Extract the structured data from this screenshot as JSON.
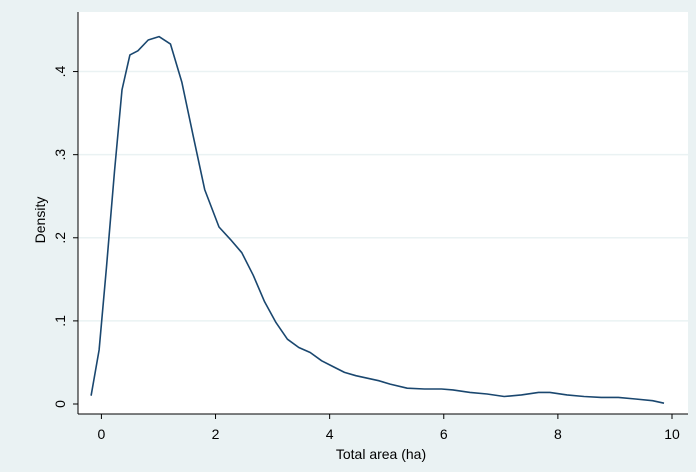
{
  "chart_data": {
    "type": "line",
    "title": "",
    "xlabel": "Total area (ha)",
    "ylabel": "Density",
    "xlim": [
      -0.2,
      10
    ],
    "ylim": [
      0,
      0.45
    ],
    "xticks": [
      0,
      2,
      4,
      6,
      8,
      10
    ],
    "xtick_labels": [
      "0",
      "2",
      "4",
      "6",
      "8",
      "10"
    ],
    "yticks": [
      0,
      0.1,
      0.2,
      0.3,
      0.4
    ],
    "ytick_labels": [
      "0",
      ".1",
      ".2",
      ".3",
      ".4"
    ],
    "grid": true,
    "colors": {
      "outer_background": "#eaf2f3",
      "plot_background": "#ffffff",
      "gridline": "#eaf2f3",
      "line": "#1a476f",
      "axis": "#000000"
    },
    "series": [
      {
        "x": [
          -0.18,
          -0.04,
          0.09,
          0.23,
          0.36,
          0.5,
          0.64,
          0.82,
          1.01,
          1.21,
          1.41,
          1.61,
          1.81,
          2.06,
          2.26,
          2.46,
          2.66,
          2.86,
          3.06,
          3.26,
          3.46,
          3.66,
          3.86,
          4.06,
          4.26,
          4.46,
          4.66,
          4.86,
          5.06,
          5.36,
          5.66,
          5.96,
          6.16,
          6.46,
          6.76,
          7.06,
          7.36,
          7.66,
          7.86,
          8.16,
          8.46,
          8.76,
          9.06,
          9.36,
          9.66,
          9.86
        ],
        "y": [
          0.01,
          0.065,
          0.165,
          0.28,
          0.378,
          0.42,
          0.425,
          0.438,
          0.442,
          0.433,
          0.387,
          0.322,
          0.258,
          0.213,
          0.198,
          0.182,
          0.155,
          0.123,
          0.098,
          0.078,
          0.068,
          0.062,
          0.052,
          0.045,
          0.038,
          0.034,
          0.031,
          0.028,
          0.024,
          0.019,
          0.018,
          0.018,
          0.017,
          0.014,
          0.012,
          0.009,
          0.011,
          0.014,
          0.014,
          0.011,
          0.009,
          0.008,
          0.008,
          0.006,
          0.004,
          0.001
        ]
      }
    ]
  }
}
